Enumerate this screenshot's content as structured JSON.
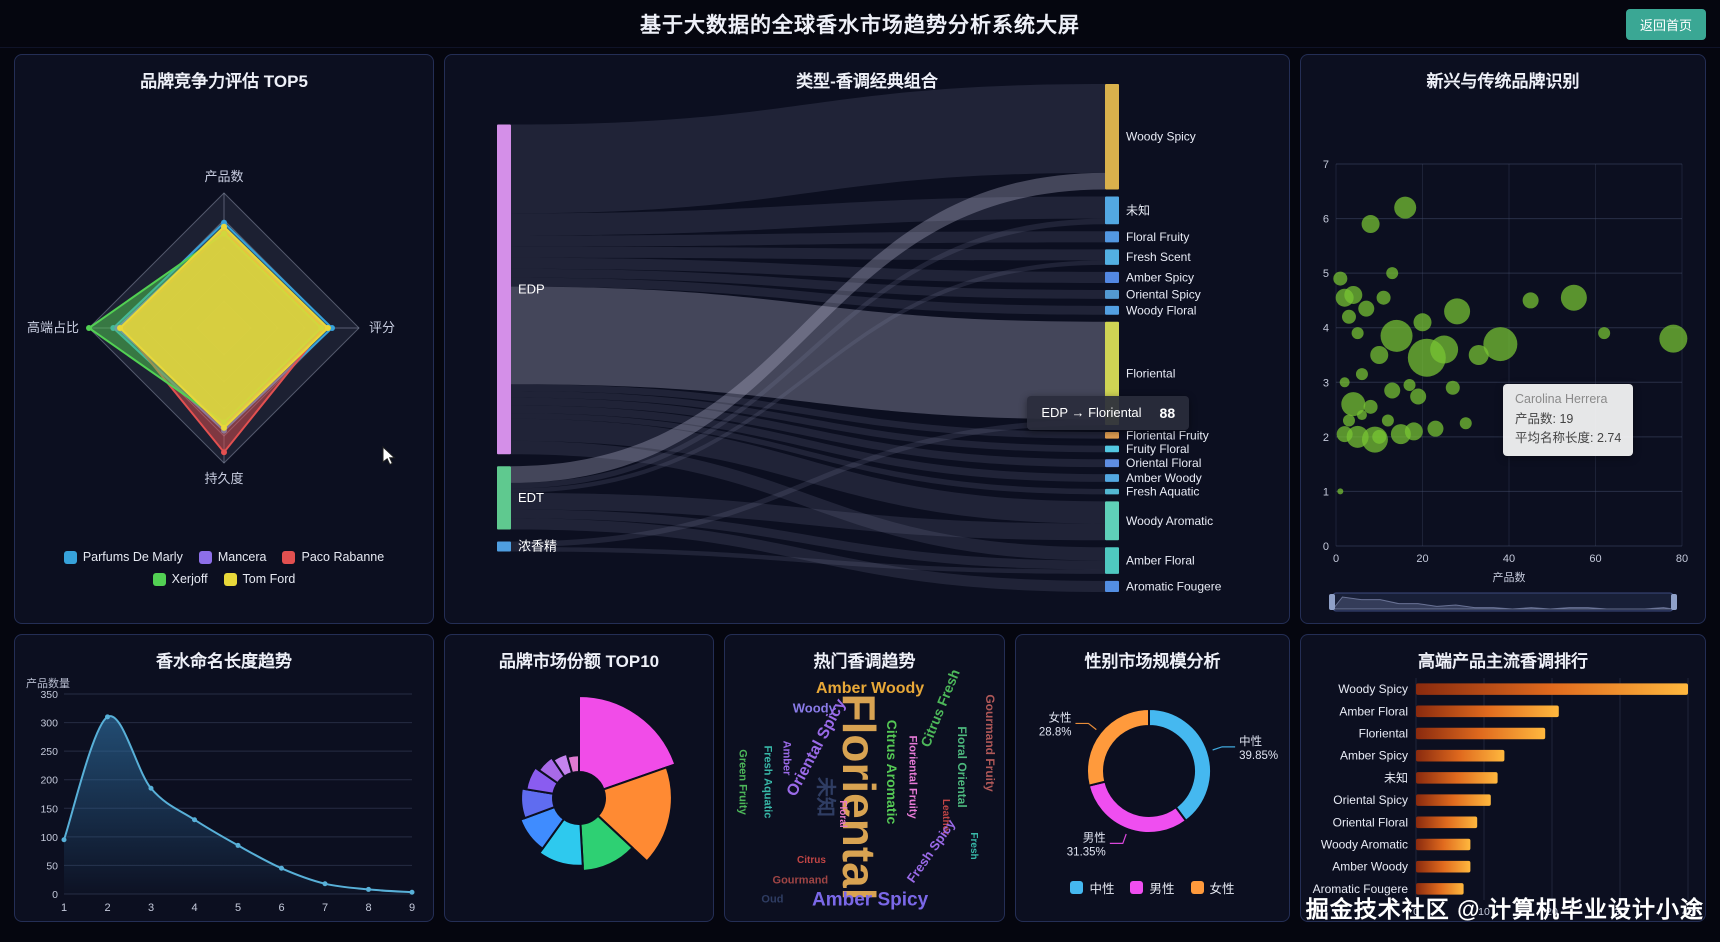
{
  "page": {
    "title": "基于大数据的全球香水市场趋势分析系统大屏",
    "back_button": "返回首页",
    "watermark": "掘金技术社区 @ 计算机毕业设计小途",
    "colors": {
      "background": "#05060f",
      "panel": "#0c0f20",
      "panel_border": "#242e55",
      "accent_teal": "#3aa794"
    }
  },
  "chart_data": [
    {
      "id": "radar",
      "type": "radar",
      "title": "品牌竞争力评估 TOP5",
      "indicators": [
        "产品数",
        "评分",
        "持久度",
        "高端占比"
      ],
      "max": 100,
      "series": [
        {
          "name": "Parfums De Marly",
          "color": "#37a2da",
          "fill_opacity": 0.35,
          "values": [
            78,
            80,
            76,
            82
          ]
        },
        {
          "name": "Mancera",
          "color": "#8d6fe8",
          "fill_opacity": 0.35,
          "values": [
            74,
            76,
            72,
            79
          ]
        },
        {
          "name": "Paco Rabanne",
          "color": "#e25050",
          "fill_opacity": 0.5,
          "values": [
            72,
            74,
            92,
            75
          ]
        },
        {
          "name": "Xerjoff",
          "color": "#52d053",
          "fill_opacity": 0.5,
          "values": [
            70,
            72,
            70,
            100
          ]
        },
        {
          "name": "Tom Ford",
          "color": "#e8d83a",
          "fill_opacity": 0.85,
          "values": [
            75,
            77,
            74,
            77
          ]
        }
      ]
    },
    {
      "id": "sankey",
      "type": "sankey",
      "title": "类型-香调经典组合",
      "left_nodes": [
        {
          "name": "EDP",
          "color": "#d48fe8"
        },
        {
          "name": "EDT",
          "color": "#5fc98f"
        },
        {
          "name": "浓香精",
          "color": "#4f9ee0"
        }
      ],
      "right_nodes": [
        {
          "name": "Woody Spicy",
          "color": "#d9b14c"
        },
        {
          "name": "未知",
          "color": "#53a8e2"
        },
        {
          "name": "Floral Fruity",
          "color": "#5398e2"
        },
        {
          "name": "Fresh Scent",
          "color": "#53b0e2"
        },
        {
          "name": "Amber Spicy",
          "color": "#5388e2"
        },
        {
          "name": "Oriental Spicy",
          "color": "#539ad2"
        },
        {
          "name": "Woody Floral",
          "color": "#53a0e2"
        },
        {
          "name": "Floriental",
          "color": "#cfd454"
        },
        {
          "name": "Floriental Fruity",
          "color": "#e2a053"
        },
        {
          "name": "Fruity Floral",
          "color": "#53c8e2"
        },
        {
          "name": "Oriental Floral",
          "color": "#5f8ee2"
        },
        {
          "name": "Amber Woody",
          "color": "#53a8e2"
        },
        {
          "name": "Fresh Aquatic",
          "color": "#53b8d2"
        },
        {
          "name": "Woody Aromatic",
          "color": "#5fd0b8"
        },
        {
          "name": "Amber Floral",
          "color": "#4fc8c0"
        },
        {
          "name": "Aromatic Fougere",
          "color": "#538ee2"
        }
      ],
      "links": [
        {
          "source": "EDP",
          "target": "Woody Spicy",
          "value": 80
        },
        {
          "source": "EDP",
          "target": "未知",
          "value": 20
        },
        {
          "source": "EDP",
          "target": "Floral Fruity",
          "value": 10
        },
        {
          "source": "EDP",
          "target": "Fresh Scent",
          "value": 10
        },
        {
          "source": "EDP",
          "target": "Amber Spicy",
          "value": 10
        },
        {
          "source": "EDP",
          "target": "Oriental Spicy",
          "value": 8
        },
        {
          "source": "EDP",
          "target": "Woody Floral",
          "value": 8
        },
        {
          "source": "EDP",
          "target": "Floriental",
          "value": 88,
          "highlight": true
        },
        {
          "source": "EDP",
          "target": "Floriental Fruity",
          "value": 6
        },
        {
          "source": "EDP",
          "target": "Fruity Floral",
          "value": 6
        },
        {
          "source": "EDP",
          "target": "Oriental Floral",
          "value": 7
        },
        {
          "source": "EDP",
          "target": "Amber Woody",
          "value": 7
        },
        {
          "source": "EDP",
          "target": "Fresh Aquatic",
          "value": 5
        },
        {
          "source": "EDP",
          "target": "Woody Aromatic",
          "value": 20
        },
        {
          "source": "EDP",
          "target": "Amber Floral",
          "value": 12
        },
        {
          "source": "EDT",
          "target": "Woody Spicy",
          "value": 15,
          "highlight": true
        },
        {
          "source": "EDT",
          "target": "未知",
          "value": 5
        },
        {
          "source": "EDT",
          "target": "Fresh Scent",
          "value": 4
        },
        {
          "source": "EDT",
          "target": "Woody Aromatic",
          "value": 15
        },
        {
          "source": "EDT",
          "target": "Amber Floral",
          "value": 8
        },
        {
          "source": "EDT",
          "target": "Aromatic Fougere",
          "value": 10
        },
        {
          "source": "浓香精",
          "target": "Floriental",
          "value": 5
        },
        {
          "source": "浓香精",
          "target": "Amber Floral",
          "value": 4
        }
      ],
      "tooltip": {
        "text": "EDP → Floriental",
        "value": "88"
      }
    },
    {
      "id": "bubble",
      "type": "scatter",
      "title": "新兴与传统品牌识别",
      "xlabel": "产品数",
      "xlim": [
        0,
        80
      ],
      "xticks": [
        0,
        20,
        40,
        60,
        80
      ],
      "ylim": [
        0,
        7
      ],
      "color": "#79c633",
      "points": [
        [
          1,
          1.0,
          3
        ],
        [
          2,
          2.05,
          8
        ],
        [
          2,
          3.0,
          5
        ],
        [
          2,
          4.55,
          9
        ],
        [
          1,
          4.9,
          7
        ],
        [
          3,
          2.3,
          6
        ],
        [
          3,
          4.2,
          7
        ],
        [
          4,
          4.6,
          9
        ],
        [
          4,
          2.6,
          12
        ],
        [
          5,
          2.0,
          11
        ],
        [
          5,
          3.9,
          6
        ],
        [
          6,
          3.15,
          6
        ],
        [
          6,
          2.4,
          5
        ],
        [
          7,
          4.35,
          8
        ],
        [
          8,
          5.9,
          9
        ],
        [
          8,
          2.55,
          7
        ],
        [
          9,
          1.95,
          13
        ],
        [
          10,
          3.5,
          9
        ],
        [
          10,
          2.0,
          7
        ],
        [
          11,
          4.55,
          7
        ],
        [
          12,
          2.3,
          6
        ],
        [
          13,
          5.0,
          6
        ],
        [
          13,
          2.85,
          8
        ],
        [
          14,
          3.85,
          16
        ],
        [
          15,
          2.05,
          10
        ],
        [
          16,
          6.2,
          11
        ],
        [
          17,
          2.95,
          6
        ],
        [
          18,
          2.1,
          9
        ],
        [
          19,
          2.74,
          8
        ],
        [
          20,
          4.1,
          9
        ],
        [
          21,
          3.45,
          19
        ],
        [
          23,
          2.15,
          8
        ],
        [
          25,
          3.6,
          14
        ],
        [
          27,
          2.9,
          7
        ],
        [
          28,
          4.3,
          13
        ],
        [
          30,
          2.25,
          6
        ],
        [
          33,
          3.5,
          10
        ],
        [
          38,
          3.7,
          17
        ],
        [
          45,
          4.5,
          8
        ],
        [
          55,
          4.55,
          13
        ],
        [
          62,
          3.9,
          6
        ],
        [
          78,
          3.8,
          14
        ]
      ],
      "tooltip": {
        "title": "Carolina Herrera",
        "lines": [
          "产品数: 19",
          "平均名称长度: 2.74"
        ]
      }
    },
    {
      "id": "area",
      "type": "area",
      "title": "香水命名长度趋势",
      "ylabel": "产品数量",
      "x": [
        1,
        2,
        3,
        4,
        5,
        6,
        7,
        8,
        9
      ],
      "values": [
        95,
        310,
        185,
        130,
        85,
        45,
        18,
        8,
        3
      ],
      "yticks": [
        0,
        50,
        100,
        150,
        200,
        250,
        300,
        350
      ],
      "ymax": 350,
      "line_color": "#58b0d8",
      "area_color": "#2e6ea0"
    },
    {
      "id": "rose",
      "type": "pie",
      "title": "品牌市场份额 TOP10",
      "rose": true,
      "segments": [
        {
          "value": 100,
          "color": "#f14ce8"
        },
        {
          "value": 88,
          "color": "#ff8a33"
        },
        {
          "value": 62,
          "color": "#2ed073"
        },
        {
          "value": 55,
          "color": "#2ec9ee"
        },
        {
          "value": 48,
          "color": "#3f8cff"
        },
        {
          "value": 42,
          "color": "#5f6cf0"
        },
        {
          "value": 36,
          "color": "#8a5cf0"
        },
        {
          "value": 30,
          "color": "#a86ae8"
        },
        {
          "value": 26,
          "color": "#c583ef"
        },
        {
          "value": 22,
          "color": "#e07bd0"
        }
      ]
    },
    {
      "id": "wordcloud",
      "type": "wordcloud",
      "title": "热门香调趋势",
      "words": [
        {
          "text": "Amber Woody",
          "size": 16,
          "color": "#e8a838",
          "x": 52,
          "y": 6,
          "rot": 0
        },
        {
          "text": "Woody",
          "size": 13,
          "color": "#8a7be8",
          "x": 32,
          "y": 14,
          "rot": 0
        },
        {
          "text": "Citrus Fresh",
          "size": 14,
          "color": "#4db85a",
          "x": 77,
          "y": 14,
          "rot": -68
        },
        {
          "text": "Oriental Spicy",
          "size": 16,
          "color": "#9a6ae8",
          "x": 33,
          "y": 30,
          "rot": -62
        },
        {
          "text": "Gourmand Fruity",
          "size": 12,
          "color": "#b05858",
          "x": 95,
          "y": 28,
          "rot": 90
        },
        {
          "text": "Floral Oriental",
          "size": 12,
          "color": "#4db87d",
          "x": 85,
          "y": 38,
          "rot": 90
        },
        {
          "text": "Citrus Aromatic",
          "size": 14,
          "color": "#55c855",
          "x": 60,
          "y": 40,
          "rot": 90
        },
        {
          "text": "Floriental",
          "size": 46,
          "color": "#d8a352",
          "x": 48,
          "y": 50,
          "rot": 90
        },
        {
          "text": "未知",
          "size": 20,
          "color": "#2f3d63",
          "x": 36,
          "y": 50,
          "rot": 90
        },
        {
          "text": "Floriental Fruity",
          "size": 11,
          "color": "#e87bd8",
          "x": 67,
          "y": 42,
          "rot": 90
        },
        {
          "text": "Amber",
          "size": 11,
          "color": "#9a6ae8",
          "x": 22,
          "y": 34,
          "rot": 90
        },
        {
          "text": "Fresh Aquatic",
          "size": 11,
          "color": "#38b8a8",
          "x": 15,
          "y": 44,
          "rot": 90
        },
        {
          "text": "Green Fruity",
          "size": 11,
          "color": "#4db85a",
          "x": 6,
          "y": 44,
          "rot": 90
        },
        {
          "text": "Floral",
          "size": 10,
          "color": "#e87bc8",
          "x": 42,
          "y": 57,
          "rot": 90
        },
        {
          "text": "Leather",
          "size": 10,
          "color": "#c04545",
          "x": 79,
          "y": 58,
          "rot": 90
        },
        {
          "text": "Fresh Spicy",
          "size": 13,
          "color": "#9a6ae8",
          "x": 74,
          "y": 72,
          "rot": -55
        },
        {
          "text": "Fresh",
          "size": 10,
          "color": "#38b8a8",
          "x": 89,
          "y": 70,
          "rot": 90
        },
        {
          "text": "Citrus",
          "size": 10,
          "color": "#c04545",
          "x": 31,
          "y": 76,
          "rot": 0
        },
        {
          "text": "Gourmand",
          "size": 11,
          "color": "#a04545",
          "x": 27,
          "y": 84,
          "rot": 0
        },
        {
          "text": "Oud",
          "size": 11,
          "color": "#2f3d63",
          "x": 17,
          "y": 92,
          "rot": 0
        },
        {
          "text": "Amber Spicy",
          "size": 19,
          "color": "#7b68e8",
          "x": 52,
          "y": 92,
          "rot": 0
        }
      ]
    },
    {
      "id": "donut",
      "type": "pie",
      "title": "性别市场规模分析",
      "donut": true,
      "segments": [
        {
          "name": "中性",
          "value": 39.85,
          "label": "39.85%",
          "color": "#45b8f0"
        },
        {
          "name": "男性",
          "value": 31.35,
          "label": "31.35%",
          "color": "#ef4ef0"
        },
        {
          "name": "女性",
          "value": 28.8,
          "label": "28.8%",
          "color": "#ff9a3c"
        }
      ],
      "legend": [
        "中性",
        "男性",
        "女性"
      ]
    },
    {
      "id": "hbar",
      "type": "bar",
      "title": "高端产品主流香调排行",
      "categories": [
        "Woody Spicy",
        "Amber Floral",
        "Floriental",
        "Amber Spicy",
        "未知",
        "Oriental Spicy",
        "Oriental Floral",
        "Woody Aromatic",
        "Amber Woody",
        "Aromatic Fougere"
      ],
      "values": [
        40,
        21,
        19,
        13,
        12,
        11,
        9,
        8,
        8,
        7
      ],
      "xticks": [
        0,
        10,
        20,
        30,
        40
      ],
      "xmax": 40,
      "bar_gradient": [
        "#8a2a0e",
        "#e06a1e",
        "#ffb83e"
      ]
    }
  ]
}
